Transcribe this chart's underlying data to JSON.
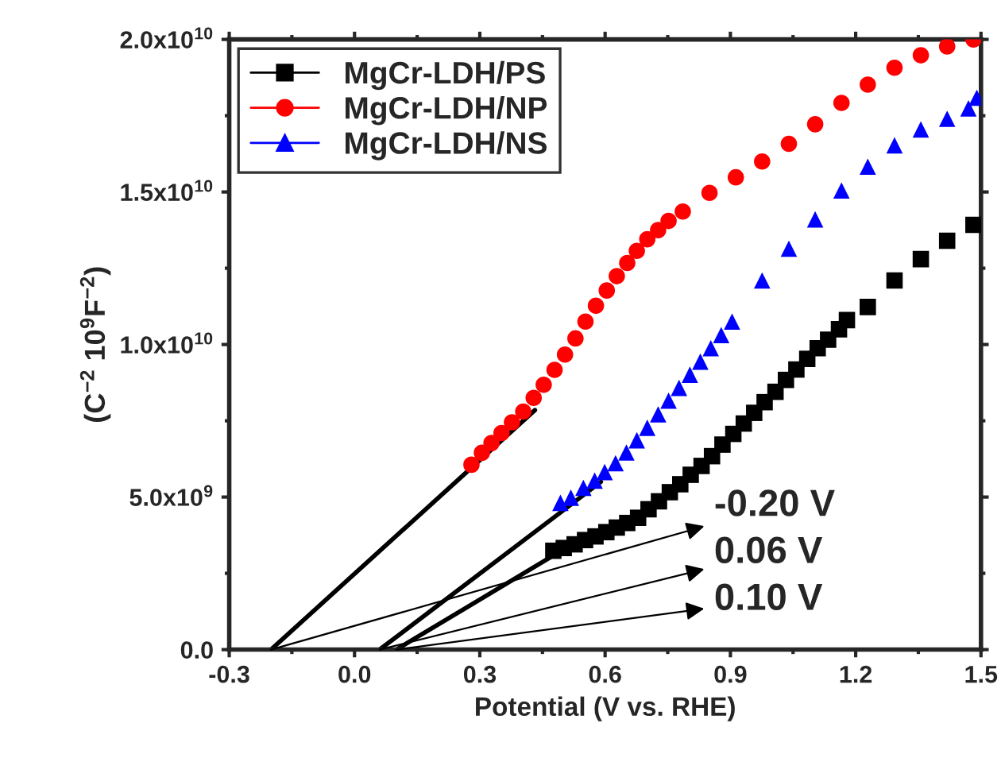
{
  "chart_data": {
    "type": "scatter",
    "xlabel": "Potential (V vs. RHE)",
    "ylabel": "(C$^{−2}$ 10$^{9}$F$^{−2}$)",
    "xlim": [
      -0.3,
      1.5
    ],
    "xticks": [
      -0.3,
      {
        "value": 0,
        "label": "0.0"
      },
      0.3,
      0.6,
      0.9,
      1.2,
      1.5
    ],
    "ylim": [
      0,
      20000000000.0
    ],
    "yticks": [
      {
        "value": 0,
        "label": "0.0"
      },
      {
        "value": 5000000000.0,
        "label": "5.0x10$^{9}$"
      },
      {
        "value": 10000000000.0,
        "label": "1.0x10$^{10}$"
      },
      {
        "value": 15000000000.0,
        "label": "1.5x10$^{10}$"
      },
      {
        "value": 20000000000.0,
        "label": "2.0x10$^{10}$"
      }
    ],
    "grid": false,
    "legend": "top left",
    "series": [
      {
        "name": "MgCr-LDH/PS",
        "color": "#000000",
        "marker": "square",
        "x": [
          0.476,
          0.501,
          0.527,
          0.552,
          0.577,
          0.603,
          0.628,
          0.653,
          0.679,
          0.704,
          0.729,
          0.755,
          0.78,
          0.805,
          0.831,
          0.856,
          0.881,
          0.907,
          0.932,
          0.957,
          0.982,
          1.008,
          1.033,
          1.058,
          1.084,
          1.109,
          1.134,
          1.16,
          1.179,
          1.229,
          1.293,
          1.356,
          1.419,
          1.482
        ],
        "values": [
          3240000000.0,
          3330000000.0,
          3450000000.0,
          3590000000.0,
          3710000000.0,
          3850000000.0,
          4000000000.0,
          4150000000.0,
          4320000000.0,
          4600000000.0,
          4860000000.0,
          5160000000.0,
          5420000000.0,
          5730000000.0,
          6020000000.0,
          6340000000.0,
          6720000000.0,
          7070000000.0,
          7410000000.0,
          7760000000.0,
          8110000000.0,
          8450000000.0,
          8840000000.0,
          9180000000.0,
          9530000000.0,
          9880000000.0,
          10160000000.0,
          10500000000.0,
          10800000000.0,
          11230000000.0,
          12100000000.0,
          12800000000.0,
          13400000000.0,
          13920000000.0
        ]
      },
      {
        "name": "MgCr-LDH/NP",
        "color": "#ff0000",
        "marker": "circle",
        "x": [
          0.28,
          0.305,
          0.328,
          0.352,
          0.377,
          0.404,
          0.429,
          0.453,
          0.479,
          0.504,
          0.529,
          0.553,
          0.578,
          0.604,
          0.628,
          0.653,
          0.676,
          0.701,
          0.727,
          0.752,
          0.786,
          0.85,
          0.913,
          0.976,
          1.04,
          1.103,
          1.166,
          1.229,
          1.293,
          1.356,
          1.419,
          1.482
        ],
        "values": [
          6060000000.0,
          6450000000.0,
          6770000000.0,
          7100000000.0,
          7450000000.0,
          7800000000.0,
          8250000000.0,
          8680000000.0,
          9170000000.0,
          9670000000.0,
          10200000000.0,
          10750000000.0,
          11270000000.0,
          11770000000.0,
          12240000000.0,
          12670000000.0,
          13070000000.0,
          13450000000.0,
          13750000000.0,
          14050000000.0,
          14360000000.0,
          14970000000.0,
          15480000000.0,
          16000000000.0,
          16580000000.0,
          17220000000.0,
          17920000000.0,
          18520000000.0,
          19070000000.0,
          19480000000.0,
          19770000000.0,
          20000000000.0
        ]
      },
      {
        "name": "MgCr-LDH/NS",
        "color": "#0000ff",
        "marker": "triangle",
        "x": [
          0.493,
          0.518,
          0.548,
          0.575,
          0.599,
          0.625,
          0.651,
          0.676,
          0.701,
          0.727,
          0.752,
          0.777,
          0.803,
          0.828,
          0.853,
          0.878,
          0.904,
          0.976,
          1.04,
          1.103,
          1.166,
          1.229,
          1.293,
          1.356,
          1.419,
          1.47,
          1.49
        ],
        "values": [
          4810000000.0,
          4980000000.0,
          5300000000.0,
          5540000000.0,
          5820000000.0,
          6110000000.0,
          6460000000.0,
          6860000000.0,
          7270000000.0,
          7710000000.0,
          8160000000.0,
          8580000000.0,
          9010000000.0,
          9440000000.0,
          9880000000.0,
          10310000000.0,
          10750000000.0,
          12100000000.0,
          13140000000.0,
          14100000000.0,
          15050000000.0,
          15830000000.0,
          16530000000.0,
          17050000000.0,
          17400000000.0,
          17740000000.0,
          18090000000.0
        ]
      },
      {
        "type": "line",
        "color": "#000000",
        "x": [
          -0.2,
          0.432
        ],
        "values": [
          0,
          7850000000.0
        ]
      },
      {
        "type": "line",
        "color": "#000000",
        "x": [
          0.06,
          0.59
        ],
        "values": [
          0,
          5500000000.0
        ]
      },
      {
        "type": "line",
        "color": "#000000",
        "x": [
          0.1,
          0.527
        ],
        "values": [
          0,
          3500000000.0
        ]
      }
    ],
    "annotations": [
      {
        "text": "-0.20 V",
        "x": -0.2,
        "y": 0
      },
      {
        "text": "0.06 V",
        "x": 0.06,
        "y": 0
      },
      {
        "text": "0.10 V",
        "x": 0.1,
        "y": 0
      }
    ]
  }
}
